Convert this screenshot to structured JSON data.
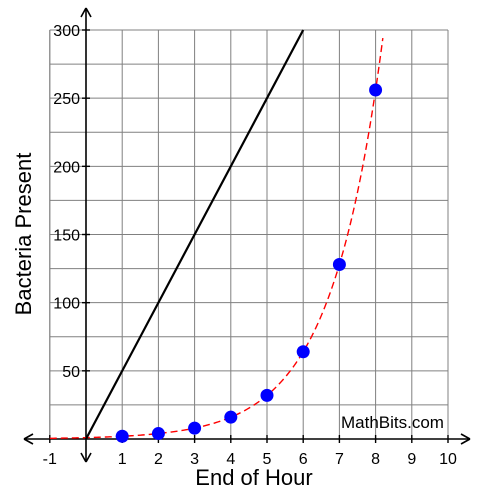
{
  "chart_data": {
    "type": "scatter",
    "title": "",
    "xlabel": "End of Hour",
    "ylabel": "Bacteria Present",
    "xlim": [
      -1,
      10
    ],
    "ylim": [
      0,
      300
    ],
    "x_ticks": [
      "-1",
      "1",
      "2",
      "3",
      "4",
      "5",
      "6",
      "7",
      "8",
      "9",
      "10"
    ],
    "y_ticks": [
      "50",
      "100",
      "150",
      "200",
      "250",
      "300"
    ],
    "grid": true,
    "series": [
      {
        "kind": "points",
        "color": "#0000ff",
        "x": [
          1,
          2,
          3,
          4,
          5,
          6,
          7,
          8
        ],
        "y": [
          2,
          4,
          8,
          16,
          32,
          64,
          128,
          256
        ]
      },
      {
        "kind": "dashed-curve",
        "color": "#ff0000",
        "equation": "y = 2^x"
      },
      {
        "kind": "line",
        "color": "#000000",
        "x": [
          0,
          6
        ],
        "y": [
          0,
          300
        ]
      }
    ],
    "watermark": "MathBits.com"
  }
}
